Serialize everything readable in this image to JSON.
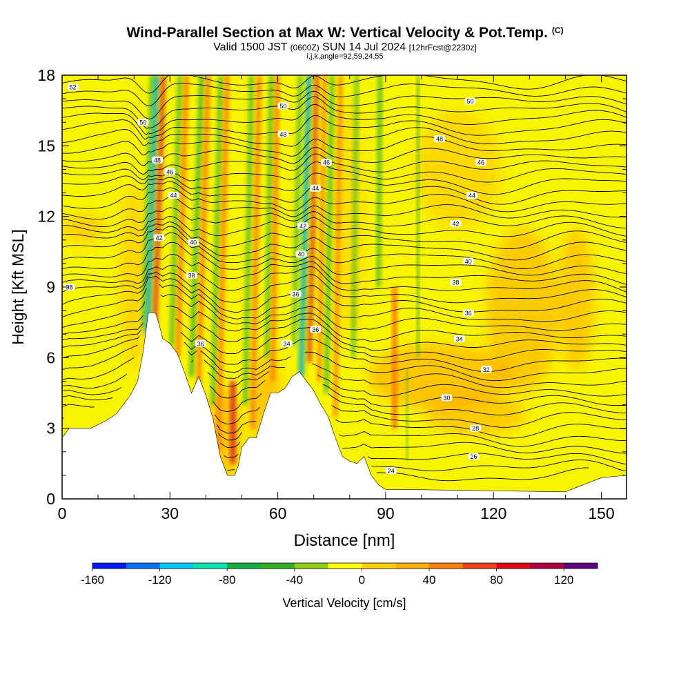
{
  "title": {
    "main": "Wind-Parallel Section at Max W: Vertical Velocity & Pot.Temp.",
    "copyright": "(C)",
    "valid_main": "Valid 1500 JST",
    "valid_utc": "(0600Z)",
    "valid_date": "SUN 14 Jul 2024",
    "forecast": "[12hrFcst@2230z]",
    "params": "i,j,k,angle=92,59,24,55"
  },
  "chart_data": {
    "type": "heatmap",
    "xlabel": "Distance [nm]",
    "ylabel": "Height [Kft MSL]",
    "xlim": [
      0,
      157
    ],
    "ylim": [
      0,
      18
    ],
    "x_ticks": [
      "0",
      "30",
      "60",
      "90",
      "120",
      "150"
    ],
    "y_ticks": [
      "0",
      "3",
      "6",
      "9",
      "12",
      "15",
      "18"
    ],
    "terrain_height_kft": [
      [
        0,
        2.6
      ],
      [
        2,
        3.0
      ],
      [
        8,
        3.0
      ],
      [
        12,
        3.3
      ],
      [
        15,
        3.6
      ],
      [
        17,
        4.0
      ],
      [
        19,
        4.4
      ],
      [
        21,
        5.0
      ],
      [
        22.5,
        6.2
      ],
      [
        24,
        7.9
      ],
      [
        26,
        7.9
      ],
      [
        27,
        7.4
      ],
      [
        28,
        6.8
      ],
      [
        30,
        6.6
      ],
      [
        32,
        6.2
      ],
      [
        34,
        5.4
      ],
      [
        36,
        4.5
      ],
      [
        38,
        5.2
      ],
      [
        40,
        4.4
      ],
      [
        42,
        3.4
      ],
      [
        44,
        1.8
      ],
      [
        46,
        1.0
      ],
      [
        48,
        1.0
      ],
      [
        49,
        1.4
      ],
      [
        50,
        2.2
      ],
      [
        52,
        2.6
      ],
      [
        54,
        2.6
      ],
      [
        56,
        3.6
      ],
      [
        58,
        4.5
      ],
      [
        60,
        4.5
      ],
      [
        62,
        4.7
      ],
      [
        64,
        5.2
      ],
      [
        66,
        5.4
      ],
      [
        68,
        5.0
      ],
      [
        70,
        4.6
      ],
      [
        72,
        4.0
      ],
      [
        74,
        3.5
      ],
      [
        76,
        2.6
      ],
      [
        78,
        1.8
      ],
      [
        80,
        1.6
      ],
      [
        82,
        1.5
      ],
      [
        84,
        1.8
      ],
      [
        86,
        1.0
      ],
      [
        88,
        0.6
      ],
      [
        90,
        0.4
      ],
      [
        95,
        0.4
      ],
      [
        140,
        0.3
      ],
      [
        150,
        0.9
      ],
      [
        157,
        1.0
      ]
    ],
    "theta_contour_labels": [
      {
        "value": "52",
        "x": 3,
        "y": 17.5
      },
      {
        "value": "50",
        "x": 22.5,
        "y": 16.0
      },
      {
        "value": "50",
        "x": 61.5,
        "y": 16.7
      },
      {
        "value": "50",
        "x": 113.5,
        "y": 16.9
      },
      {
        "value": "48",
        "x": 26.5,
        "y": 14.4
      },
      {
        "value": "48",
        "x": 61.5,
        "y": 15.5
      },
      {
        "value": "48",
        "x": 105,
        "y": 15.3
      },
      {
        "value": "46",
        "x": 30,
        "y": 13.9
      },
      {
        "value": "46",
        "x": 73.5,
        "y": 14.3
      },
      {
        "value": "46",
        "x": 116.5,
        "y": 14.3
      },
      {
        "value": "44",
        "x": 31,
        "y": 12.9
      },
      {
        "value": "44",
        "x": 70.5,
        "y": 13.2
      },
      {
        "value": "44",
        "x": 114,
        "y": 12.9
      },
      {
        "value": "42",
        "x": 27,
        "y": 11.1
      },
      {
        "value": "42",
        "x": 67,
        "y": 11.6
      },
      {
        "value": "42",
        "x": 109.5,
        "y": 11.7
      },
      {
        "value": "40",
        "x": 36.5,
        "y": 10.9
      },
      {
        "value": "40",
        "x": 66.5,
        "y": 10.4
      },
      {
        "value": "40",
        "x": 113,
        "y": 10.1
      },
      {
        "value": "38",
        "x": 2,
        "y": 9.0
      },
      {
        "value": "38",
        "x": 36,
        "y": 9.5
      },
      {
        "value": "38",
        "x": 109.5,
        "y": 9.2
      },
      {
        "value": "36",
        "x": 65,
        "y": 8.7
      },
      {
        "value": "36",
        "x": 113,
        "y": 7.9
      },
      {
        "value": "36",
        "x": 38.5,
        "y": 6.6
      },
      {
        "value": "36",
        "x": 70.5,
        "y": 7.2
      },
      {
        "value": "34",
        "x": 62.5,
        "y": 6.6
      },
      {
        "value": "34",
        "x": 110.5,
        "y": 6.8
      },
      {
        "value": "32",
        "x": 118,
        "y": 5.5
      },
      {
        "value": "30",
        "x": 107,
        "y": 4.3
      },
      {
        "value": "28",
        "x": 115,
        "y": 3.0
      },
      {
        "value": "26",
        "x": 114.5,
        "y": 1.8
      },
      {
        "value": "24",
        "x": 91.5,
        "y": 1.2
      }
    ],
    "velocity_bands": [
      {
        "x": 22.6,
        "w": 1.0,
        "kind": "down",
        "ybot": 7.2,
        "ytop": 18,
        "slope": 0.22
      },
      {
        "x": 23.8,
        "w": 1.5,
        "kind": "strong_down",
        "ybot": 7.0,
        "ytop": 18,
        "slope": 0.22
      },
      {
        "x": 25.8,
        "w": 1.3,
        "kind": "strong_up",
        "ybot": 7.2,
        "ytop": 18,
        "slope": 0.22
      },
      {
        "x": 30.5,
        "w": 1.2,
        "kind": "down",
        "ybot": 6.5,
        "ytop": 18,
        "slope": 0.2
      },
      {
        "x": 32.2,
        "w": 1.3,
        "kind": "up",
        "ybot": 6.0,
        "ytop": 18,
        "slope": 0.2
      },
      {
        "x": 36.0,
        "w": 1.4,
        "kind": "down",
        "ybot": 5.2,
        "ytop": 18,
        "slope": 0.22
      },
      {
        "x": 38.0,
        "w": 1.3,
        "kind": "up",
        "ybot": 4.8,
        "ytop": 18,
        "slope": 0.2
      },
      {
        "x": 42.0,
        "w": 1.2,
        "kind": "down",
        "ybot": 4.0,
        "ytop": 18,
        "slope": 0.15
      },
      {
        "x": 43.5,
        "w": 1.3,
        "kind": "up",
        "ybot": 2.0,
        "ytop": 18,
        "slope": 0.15
      },
      {
        "x": 47.5,
        "w": 1.8,
        "kind": "strong_up",
        "ybot": 1.5,
        "ytop": 5.0,
        "slope": 0.0
      },
      {
        "x": 51.0,
        "w": 1.2,
        "kind": "down",
        "ybot": 4.0,
        "ytop": 18,
        "slope": 0.12
      },
      {
        "x": 53.0,
        "w": 1.3,
        "kind": "up",
        "ybot": 3.0,
        "ytop": 18,
        "slope": 0.12
      },
      {
        "x": 57.0,
        "w": 1.2,
        "kind": "down",
        "ybot": 6.0,
        "ytop": 18,
        "slope": 0.1
      },
      {
        "x": 58.6,
        "w": 1.3,
        "kind": "up",
        "ybot": 5.0,
        "ytop": 18,
        "slope": 0.1
      },
      {
        "x": 64.5,
        "w": 1.1,
        "kind": "down",
        "ybot": 6.5,
        "ytop": 18,
        "slope": 0.15
      },
      {
        "x": 66.5,
        "w": 1.5,
        "kind": "strong_down",
        "ybot": 5.2,
        "ytop": 18,
        "slope": 0.17
      },
      {
        "x": 68.8,
        "w": 1.2,
        "kind": "strong_up",
        "ybot": 5.8,
        "ytop": 18,
        "slope": 0.17
      },
      {
        "x": 71.5,
        "w": 1.1,
        "kind": "up",
        "ybot": 5.0,
        "ytop": 18,
        "slope": 0.12
      },
      {
        "x": 73.5,
        "w": 1.2,
        "kind": "down",
        "ybot": 4.5,
        "ytop": 18,
        "slope": 0.12
      },
      {
        "x": 76.0,
        "w": 1.1,
        "kind": "up",
        "ybot": 3.5,
        "ytop": 18,
        "slope": 0.1
      },
      {
        "x": 81.0,
        "w": 1.0,
        "kind": "down",
        "ybot": 6.0,
        "ytop": 18,
        "slope": 0.08
      },
      {
        "x": 88.0,
        "w": 1.2,
        "kind": "down",
        "ybot": 9.0,
        "ytop": 18,
        "slope": 0.05
      },
      {
        "x": 92.5,
        "w": 1.6,
        "kind": "up",
        "ybot": 3.0,
        "ytop": 9.0,
        "slope": 0.0
      },
      {
        "x": 96.0,
        "w": 0.6,
        "kind": "down",
        "ybot": 1.6,
        "ytop": 5.5,
        "slope": 0.0
      },
      {
        "x": 99.0,
        "w": 0.8,
        "kind": "down",
        "ybot": 6.0,
        "ytop": 18,
        "slope": 0.0
      }
    ]
  },
  "colorbar": {
    "label": "Vertical Velocity [cm/s]",
    "tick_labels": [
      "-160",
      "-120",
      "-80",
      "-40",
      "0",
      "40",
      "80",
      "120"
    ],
    "colors": [
      "#0018ff",
      "#0070ff",
      "#00c8ff",
      "#00e8b0",
      "#10b040",
      "#30b020",
      "#90d010",
      "#ffff00",
      "#ffd000",
      "#ffb000",
      "#ff8000",
      "#f04010",
      "#e00010",
      "#b00040",
      "#600080"
    ]
  }
}
